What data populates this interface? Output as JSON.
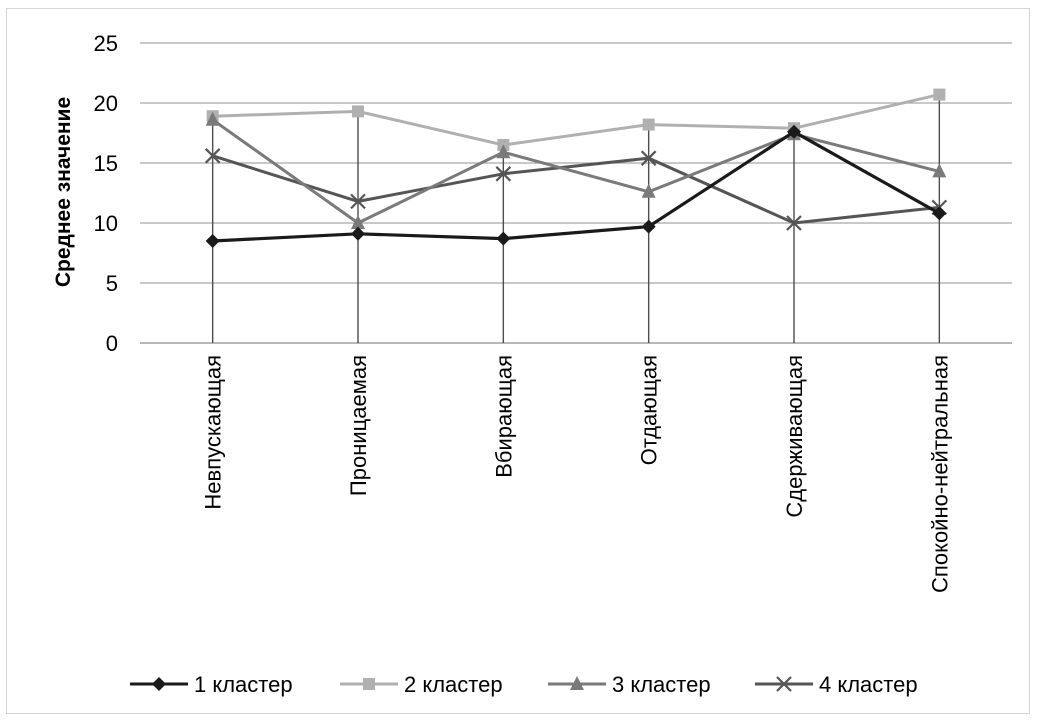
{
  "chart_data": {
    "type": "line",
    "title": "",
    "xlabel": "",
    "ylabel": "Среднее значение",
    "ylim": [
      0,
      25
    ],
    "yticks": [
      0,
      5,
      10,
      15,
      20,
      25
    ],
    "grid": true,
    "legend_position": "bottom",
    "categories": [
      "Невпускающая",
      "Проницаемая",
      "Вбирающая",
      "Отдающая",
      "Сдерживающая",
      "Спокойно-нейтральная"
    ],
    "series": [
      {
        "name": "1 кластер",
        "marker": "diamond",
        "color": "#1a1a1a",
        "values": [
          8.5,
          9.1,
          8.7,
          9.7,
          17.6,
          10.8
        ]
      },
      {
        "name": "2 кластер",
        "marker": "square",
        "color": "#b0b0b0",
        "values": [
          18.9,
          19.3,
          16.5,
          18.2,
          17.9,
          20.7
        ]
      },
      {
        "name": "3 кластер",
        "marker": "triangle",
        "color": "#7a7a7a",
        "values": [
          18.6,
          10.0,
          15.9,
          12.6,
          17.4,
          14.3
        ]
      },
      {
        "name": "4 кластер",
        "marker": "x",
        "color": "#555555",
        "values": [
          15.6,
          11.8,
          14.1,
          15.4,
          10.0,
          11.3
        ]
      }
    ]
  }
}
